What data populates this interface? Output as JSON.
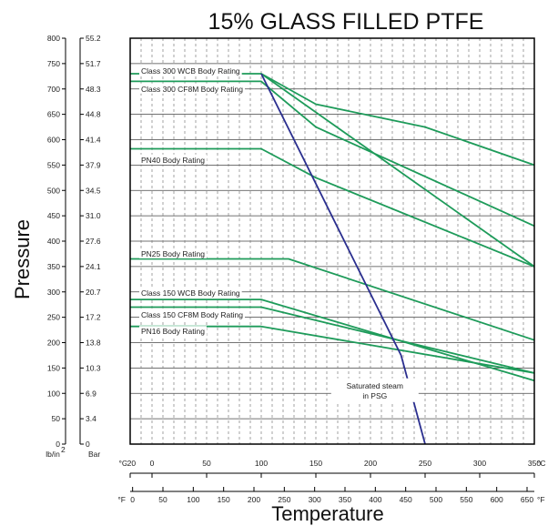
{
  "chart_data": {
    "type": "line",
    "title": "15% GLASS FILLED PTFE",
    "xlabel": "Temperature",
    "ylabel": "Pressure",
    "x_unit_c": "°C",
    "x_unit_f": "°F",
    "y_unit_psi_top": "lb/in",
    "y_unit_psi_sup": "2",
    "y_unit_bar": "Bar",
    "xlim_c": [
      -20,
      350
    ],
    "ylim_psi": [
      0,
      800
    ],
    "grid": true,
    "x_ticks_c": [
      -20,
      0,
      50,
      100,
      150,
      200,
      250,
      300,
      350
    ],
    "x_ticks_f": [
      0,
      50,
      100,
      150,
      200,
      250,
      300,
      350,
      400,
      450,
      500,
      550,
      600,
      650
    ],
    "y_ticks_psi": [
      0,
      50,
      100,
      150,
      200,
      250,
      300,
      350,
      400,
      450,
      500,
      550,
      600,
      650,
      700,
      750,
      800
    ],
    "y_ticks_bar": [
      "0",
      "3.4",
      "6.9",
      "10.3",
      "13.8",
      "17.2",
      "20.7",
      "24.1",
      "27.6",
      "31.0",
      "34.5",
      "37.9",
      "41.4",
      "44.8",
      "48.3",
      "51.7",
      "55.2"
    ],
    "series": [
      {
        "name": "Class 300 WCB Body Rating",
        "color": "#1e9b5a",
        "points": [
          [
            -20,
            730
          ],
          [
            100,
            730
          ],
          [
            150,
            670
          ],
          [
            250,
            625
          ],
          [
            350,
            550
          ]
        ]
      },
      {
        "name": "Class 300 CF8M Body Rating",
        "color": "#1e9b5a",
        "points": [
          [
            -20,
            715
          ],
          [
            100,
            715
          ],
          [
            150,
            625
          ],
          [
            350,
            430
          ]
        ]
      },
      {
        "name": "",
        "color": "#1e9b5a",
        "points": [
          [
            100,
            730
          ],
          [
            350,
            350
          ]
        ]
      },
      {
        "name": "PN40 Body Rating",
        "color": "#1e9b5a",
        "points": [
          [
            -20,
            582
          ],
          [
            100,
            582
          ],
          [
            150,
            525
          ],
          [
            350,
            350
          ]
        ]
      },
      {
        "name": "PN25 Body Rating",
        "color": "#1e9b5a",
        "points": [
          [
            -20,
            365
          ],
          [
            125,
            365
          ],
          [
            350,
            205
          ]
        ]
      },
      {
        "name": "Class 150 WCB Body Rating",
        "color": "#1e9b5a",
        "points": [
          [
            -20,
            285
          ],
          [
            100,
            285
          ],
          [
            350,
            125
          ]
        ]
      },
      {
        "name": "Class 150 CF8M Body Rating",
        "color": "#1e9b5a",
        "points": [
          [
            -20,
            270
          ],
          [
            100,
            270
          ],
          [
            350,
            140
          ]
        ]
      },
      {
        "name": "PN16 Body Rating",
        "color": "#1e9b5a",
        "points": [
          [
            -20,
            232
          ],
          [
            100,
            232
          ],
          [
            350,
            140
          ]
        ]
      },
      {
        "name": "Saturated steam in PSG",
        "color": "#2b2f8f",
        "points": [
          [
            100,
            730
          ],
          [
            228,
            175
          ],
          [
            250,
            0
          ]
        ]
      }
    ],
    "annotations": [
      {
        "text": "Saturated steam",
        "line2": "in PSG"
      }
    ]
  }
}
